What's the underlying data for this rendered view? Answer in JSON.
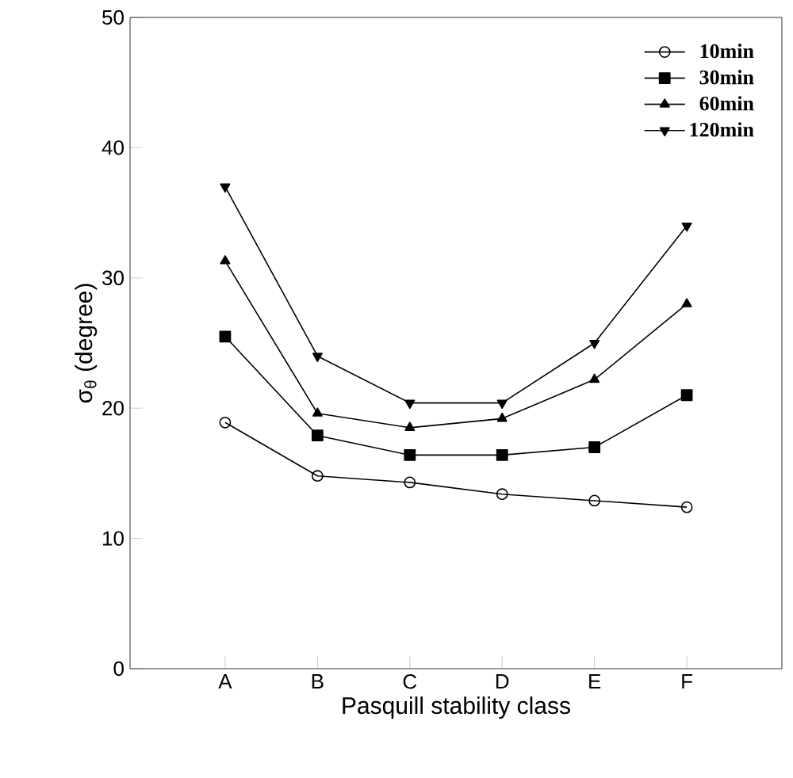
{
  "chart_data": {
    "type": "line",
    "xlabel": "Pasquill stability class",
    "ylabel": "σ$_{θ}$ (degree)",
    "categories": [
      "A",
      "B",
      "C",
      "D",
      "E",
      "F"
    ],
    "ylim": [
      0,
      50
    ],
    "yticks": [
      0,
      10,
      20,
      30,
      40,
      50
    ],
    "grid": false,
    "legend": "top right",
    "line_style": "solid",
    "series": [
      {
        "name": "10min",
        "color": "#000000",
        "marker": "circle",
        "values": [
          18.9,
          14.8,
          14.3,
          13.4,
          12.9,
          12.4
        ]
      },
      {
        "name": "30min",
        "color": "#000000",
        "marker": "square",
        "values": [
          25.5,
          17.9,
          16.4,
          16.4,
          17.0,
          21.0
        ]
      },
      {
        "name": "60min",
        "color": "#000000",
        "marker": "triangle",
        "values": [
          31.3,
          19.6,
          18.5,
          19.2,
          22.2,
          28.0
        ]
      },
      {
        "name": "120min",
        "color": "#000000",
        "marker": "triangle-down",
        "values": [
          37.0,
          24.0,
          20.4,
          20.4,
          25.0,
          34.0
        ]
      }
    ]
  }
}
